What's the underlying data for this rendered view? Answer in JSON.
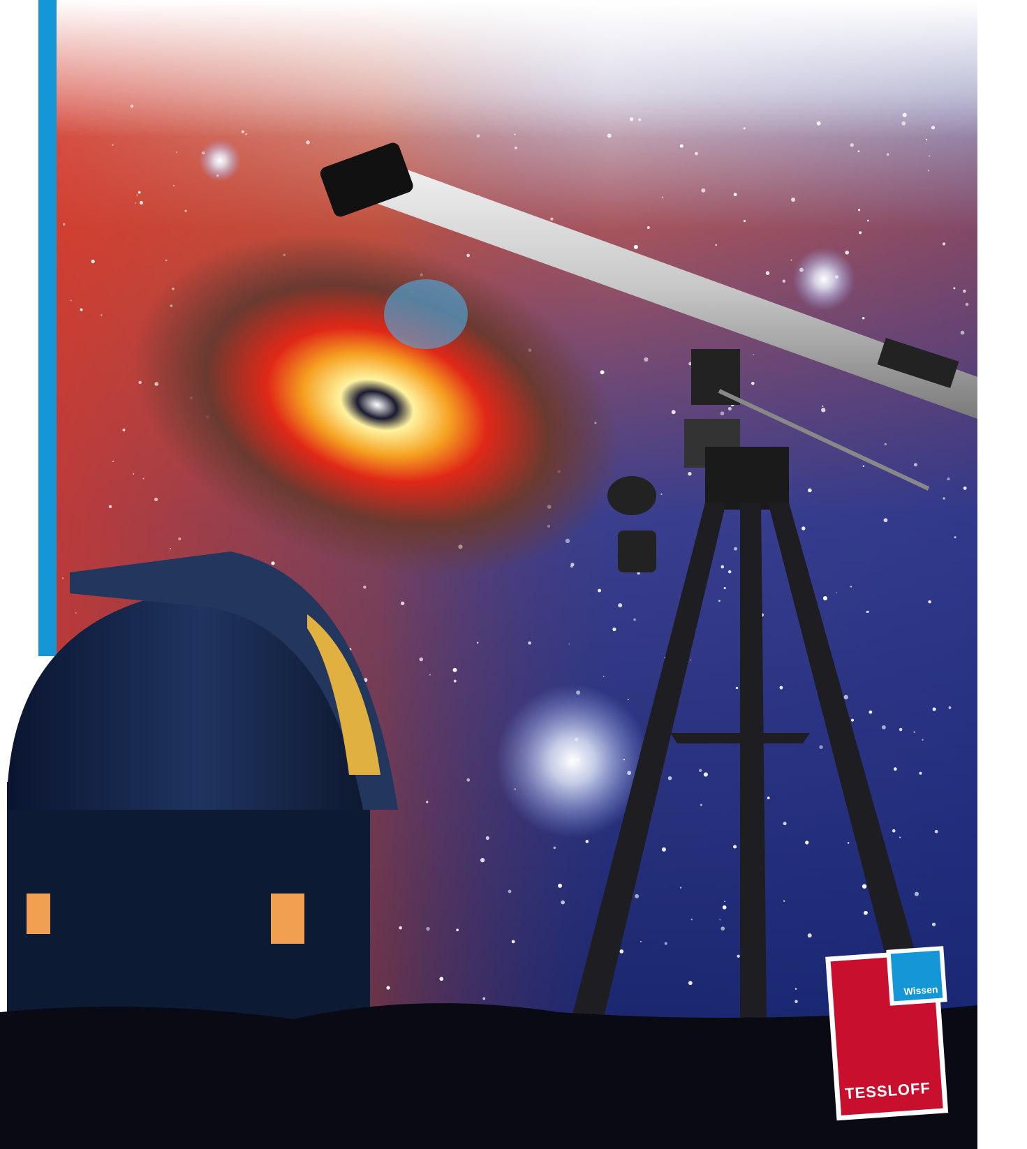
{
  "logo": {
    "label": "Wissen",
    "brand": "TESSLOFF"
  }
}
